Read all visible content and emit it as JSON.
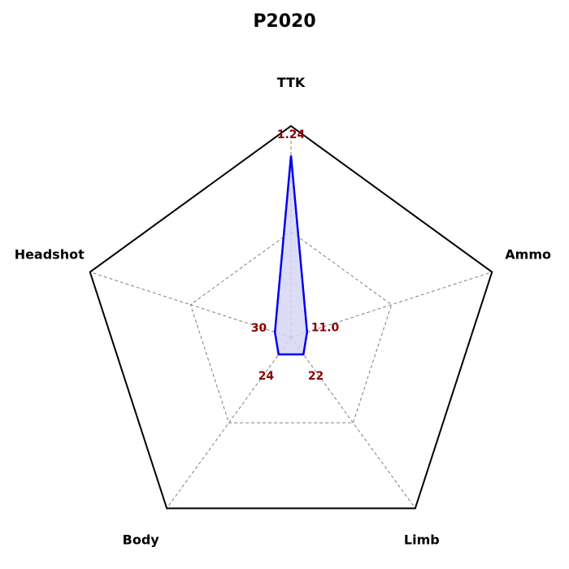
{
  "chart_data": {
    "type": "radar",
    "title": "P2020",
    "axes": [
      "TTK",
      "Ammo",
      "Limb",
      "Body",
      "Headshot"
    ],
    "value_labels": [
      "1.24",
      "11.0",
      "22",
      "24",
      "30"
    ],
    "normalized_values": [
      0.86,
      0.08,
      0.1,
      0.1,
      0.08
    ],
    "grid": true,
    "grid_levels": [
      0.5
    ],
    "colors": {
      "series_line": "#0000ee",
      "series_fill": "#d6d6f5",
      "value_text": "#8b0000",
      "grid": "#808080",
      "outline": "#000000"
    }
  }
}
